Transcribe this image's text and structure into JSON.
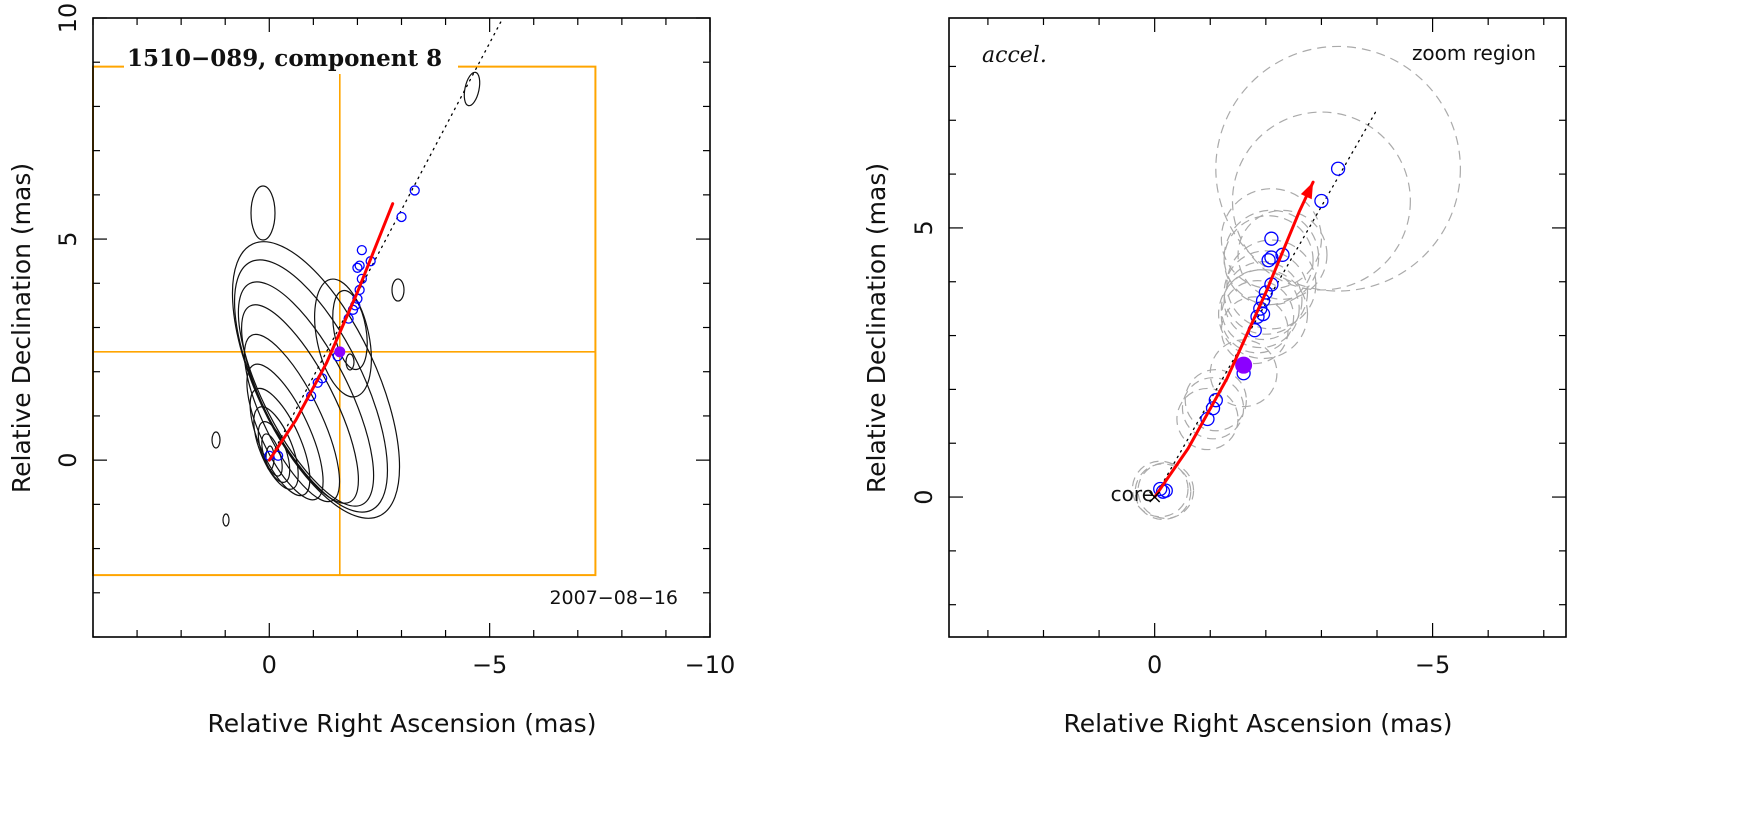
{
  "chart_data": [
    {
      "type": "scatter",
      "title": "1510−089, component 8",
      "date_label": "2007−08−16",
      "xlabel": "Relative Right Ascension (mas)",
      "ylabel": "Relative Declination (mas)",
      "xlim": [
        4,
        -10
      ],
      "ylim": [
        -4,
        10
      ],
      "x_ticks": [
        {
          "v": 0,
          "label": "0"
        },
        {
          "v": -5,
          "label": "−5"
        },
        {
          "v": -10,
          "label": "−10"
        }
      ],
      "y_ticks": [
        {
          "v": 0,
          "label": "0"
        },
        {
          "v": 5,
          "label": "5"
        },
        {
          "v": 10,
          "label": "10"
        }
      ],
      "colors": {
        "box": "#FFA500",
        "track": "#FF0000",
        "points": "#0000FF",
        "highlight": "#8B00FF",
        "contours": "#111111"
      },
      "zoom_box": {
        "x": [
          4,
          -7.4
        ],
        "y": [
          -2.6,
          8.9
        ],
        "cross": [
          -1.6,
          2.45
        ]
      },
      "jet_axis": [
        [
          0,
          0
        ],
        [
          -5.3,
          10
        ]
      ],
      "track": [
        [
          0,
          0
        ],
        [
          -0.6,
          0.9
        ],
        [
          -1.3,
          2.2
        ],
        [
          -2.0,
          3.8
        ],
        [
          -2.8,
          5.8
        ]
      ],
      "positions": [
        [
          0,
          0.1
        ],
        [
          -0.2,
          0.1
        ],
        [
          -0.95,
          1.45
        ],
        [
          -1.1,
          1.75
        ],
        [
          -1.2,
          1.85
        ],
        [
          -1.55,
          2.35
        ],
        [
          -1.8,
          3.2
        ],
        [
          -1.9,
          3.4
        ],
        [
          -1.95,
          3.5
        ],
        [
          -2.0,
          3.65
        ],
        [
          -2.05,
          3.85
        ],
        [
          -2.1,
          4.1
        ],
        [
          -2.0,
          4.35
        ],
        [
          -2.05,
          4.4
        ],
        [
          -2.1,
          4.75
        ],
        [
          -2.3,
          4.5
        ],
        [
          -3.0,
          5.5
        ],
        [
          -3.3,
          6.1
        ]
      ],
      "highlight": [
        -1.6,
        2.45
      ]
    },
    {
      "type": "scatter",
      "title": "accel.",
      "region_label": "zoom region",
      "core_label": "core",
      "xlabel": "Relative Right Ascension (mas)",
      "ylabel": "Relative Declination (mas)",
      "xlim": [
        3.7,
        -7.4
      ],
      "ylim": [
        -2.6,
        8.9
      ],
      "x_ticks": [
        {
          "v": 0,
          "label": "0"
        },
        {
          "v": -5,
          "label": "−5"
        }
      ],
      "y_ticks": [
        {
          "v": 0,
          "label": "0"
        },
        {
          "v": 5,
          "label": "5"
        }
      ],
      "colors": {
        "track": "#FF0000",
        "points": "#0000FF",
        "highlight": "#8B00FF",
        "error_circles": "#AAAAAA"
      },
      "jet_axis": [
        [
          0,
          0
        ],
        [
          -4.0,
          7.2
        ]
      ],
      "track": [
        [
          0,
          0
        ],
        [
          -0.6,
          0.9
        ],
        [
          -1.3,
          2.2
        ],
        [
          -2.0,
          3.8
        ],
        [
          -2.6,
          5.3
        ],
        [
          -2.85,
          5.85
        ]
      ],
      "positions": [
        [
          -0.1,
          0.15
        ],
        [
          -0.15,
          0.1
        ],
        [
          -0.2,
          0.12
        ],
        [
          -0.95,
          1.45
        ],
        [
          -1.05,
          1.65
        ],
        [
          -1.1,
          1.8
        ],
        [
          -1.6,
          2.3
        ],
        [
          -1.8,
          3.1
        ],
        [
          -1.85,
          3.35
        ],
        [
          -1.9,
          3.5
        ],
        [
          -1.95,
          3.65
        ],
        [
          -2.0,
          3.8
        ],
        [
          -2.1,
          3.95
        ],
        [
          -1.95,
          3.4
        ],
        [
          -2.05,
          4.4
        ],
        [
          -2.1,
          4.45
        ],
        [
          -2.1,
          4.8
        ],
        [
          -2.3,
          4.5
        ],
        [
          -3.0,
          5.5
        ],
        [
          -3.3,
          6.1
        ]
      ],
      "position_errors": [
        0.5,
        0.5,
        0.5,
        0.55,
        0.55,
        0.55,
        0.6,
        0.6,
        0.65,
        0.7,
        0.7,
        0.75,
        0.8,
        0.8,
        0.8,
        0.85,
        0.9,
        0.8,
        1.6,
        2.2
      ],
      "highlight": [
        -1.6,
        2.45
      ]
    }
  ]
}
